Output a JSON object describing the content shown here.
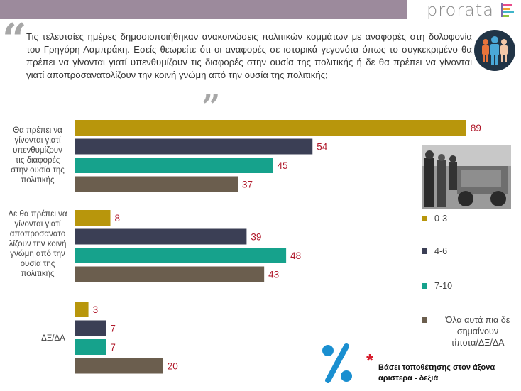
{
  "brand": {
    "name": "prorata"
  },
  "question": "Τις τελευταίες ημέρες δημοσιοποιήθηκαν ανακοινώσεις πολιτικών κομμάτων με αναφορές στη δολοφονία του Γρηγόρη Λαμπράκη. Εσείς θεωρείτε ότι οι αναφορές σε ιστορικά γεγονότα όπως το συγκεκριμένο θα πρέπει να γίνονται γιατί υπενθυμίζουν τις διαφορές στην ουσία της πολιτικής ή δε θα πρέπει να γίνονται γιατί αποπροσανατολίζουν την κοινή γνώμη από την ουσία της πολιτικής;",
  "colors": {
    "topbar": "#9c8a9c",
    "s1": "#b8960c",
    "s2": "#3b3f55",
    "s3": "#16a28c",
    "s4": "#6b5e4e",
    "value": "#b0182a"
  },
  "icons": [
    "quote-open-icon",
    "quote-close-icon",
    "people-icon",
    "percent-icon",
    "asterisk-icon"
  ],
  "chart_data": {
    "type": "bar",
    "orientation": "horizontal",
    "categories": [
      "Θα πρέπει να γίνονται γιατί υπενθυμίζουν τις διαφορές στην ουσία της πολιτικής",
      "Δε θα πρέπει να γίνονται γιατί αποπροσανατολίζουν την κοινή γνώμη από την ουσία της πολιτικής",
      "ΔΞ/ΔΑ"
    ],
    "category_lines": [
      [
        "Θα πρέπει να",
        "γίνονται γιατί",
        "υπενθυμίζουν",
        "τις διαφορές",
        "στην ουσία της",
        "πολιτικής"
      ],
      [
        "Δε θα πρέπει να",
        "γίνονται γιατί",
        "αποπροσανατο",
        "λίζουν την κοινή",
        "γνώμη από την",
        "ουσία της",
        "πολιτικής"
      ],
      [
        "ΔΞ/ΔΑ"
      ]
    ],
    "series": [
      {
        "name": "0-3",
        "values": [
          89,
          8,
          3
        ]
      },
      {
        "name": "4-6",
        "values": [
          54,
          39,
          7
        ]
      },
      {
        "name": "7-10",
        "values": [
          45,
          48,
          7
        ]
      },
      {
        "name": "Όλα αυτά πια δε σημαίνουν τίποτα/ΔΞ/ΔΑ",
        "values": [
          37,
          43,
          20
        ]
      }
    ],
    "legend_lines": [
      [
        "0-3"
      ],
      [
        "4-6"
      ],
      [
        "7-10"
      ],
      [
        "Όλα αυτά πια δε",
        "σημαίνουν",
        "τίποτα/ΔΞ/ΔΑ"
      ]
    ],
    "xlim": [
      0,
      100
    ],
    "legend_position": "right",
    "grid": false
  },
  "footnote": {
    "symbol": "*",
    "lines": [
      "Βάσει τοποθέτησης στον άξονα",
      "αριστερά - δεξιά"
    ]
  }
}
